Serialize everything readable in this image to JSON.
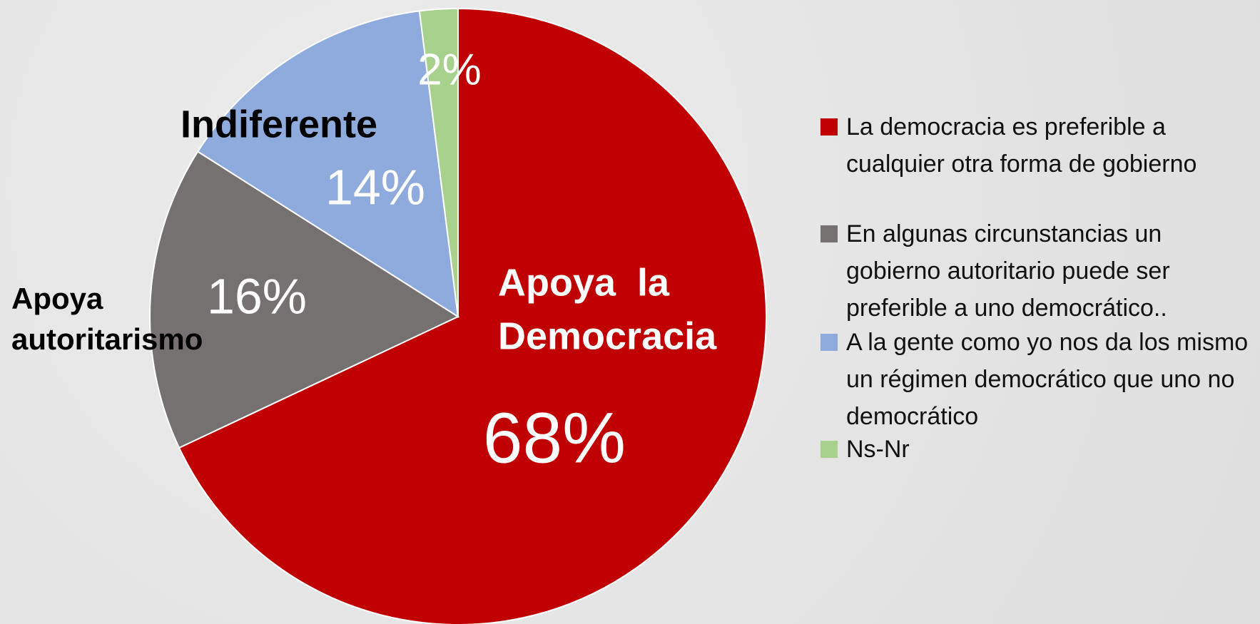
{
  "chart_data": {
    "type": "pie",
    "categories": [
      "La democracia es preferible a cualquier otra forma de gobierno",
      "En algunas circunstancias un gobierno autoritario puede ser preferible a uno democrático..",
      "A la gente como yo nos da los mismo un régimen democrático que uno no democrático",
      "Ns-Nr"
    ],
    "values": [
      68,
      16,
      14,
      2
    ],
    "value_labels": [
      "68%",
      "16%",
      "14%",
      "2%"
    ],
    "colors": [
      "#c00000",
      "#767171",
      "#8faadc",
      "#a9d18e"
    ],
    "annotations": [
      {
        "lines": [
          "Apoya  la",
          "Democracia"
        ]
      },
      {
        "lines": [
          "Apoya",
          "autoritarismo"
        ]
      },
      {
        "lines": [
          "Indiferente"
        ]
      }
    ],
    "legend": "right"
  }
}
